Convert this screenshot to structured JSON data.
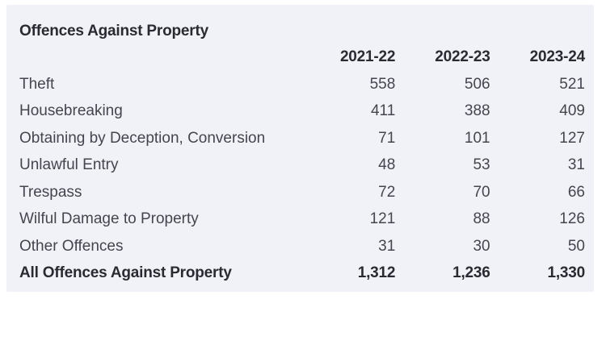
{
  "table": {
    "title": "Offences Against Property",
    "columns": [
      "2021-22",
      "2022-23",
      "2023-24"
    ],
    "rows": [
      {
        "label": "Theft",
        "values": [
          "558",
          "506",
          "521"
        ]
      },
      {
        "label": "Housebreaking",
        "values": [
          "411",
          "388",
          "409"
        ]
      },
      {
        "label": "Obtaining by Deception, Conversion",
        "values": [
          "71",
          "101",
          "127"
        ]
      },
      {
        "label": "Unlawful Entry",
        "values": [
          "48",
          "53",
          "31"
        ]
      },
      {
        "label": "Trespass",
        "values": [
          "72",
          "70",
          "66"
        ]
      },
      {
        "label": "Wilful Damage to Property",
        "values": [
          "121",
          "88",
          "126"
        ]
      },
      {
        "label": "Other Offences",
        "values": [
          "31",
          "30",
          "50"
        ]
      }
    ],
    "total": {
      "label": "All Offences Against Property",
      "values": [
        "1,312",
        "1,236",
        "1,330"
      ]
    }
  }
}
